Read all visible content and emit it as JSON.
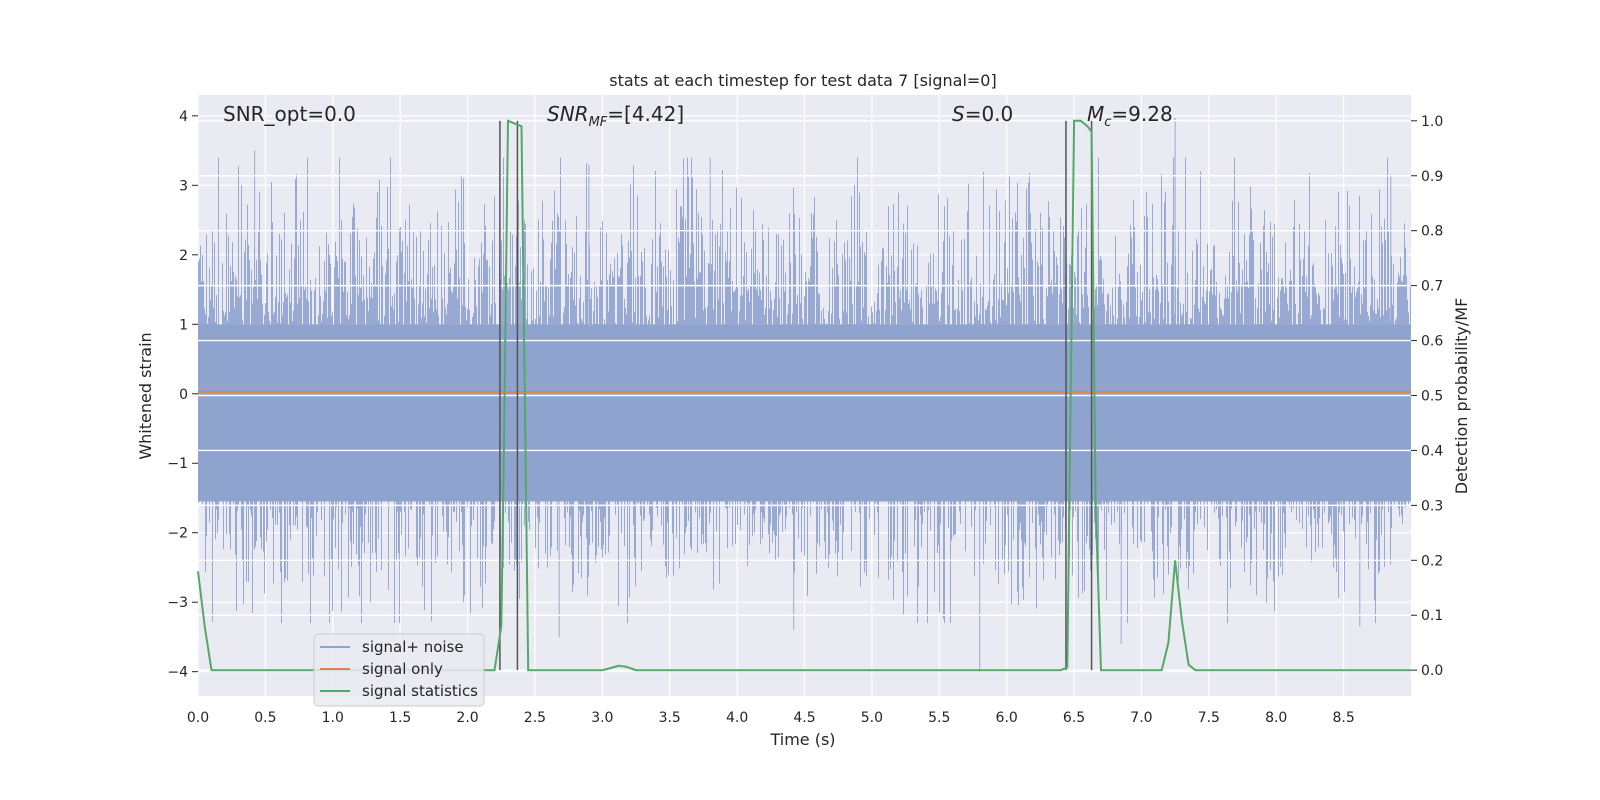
{
  "chart_data": {
    "type": "line",
    "title": "stats at each timestep for test data 7 [signal=0]",
    "xlabel": "Time (s)",
    "ylabel": "Whitened strain",
    "ylabel_right": "Detection probability/MF",
    "xlim": [
      0,
      9.0
    ],
    "ylim": [
      -4.35,
      4.3
    ],
    "ylim_right": [
      -0.047,
      1.047
    ],
    "xticks": [
      "0.0",
      "0.5",
      "1.0",
      "1.5",
      "2.0",
      "2.5",
      "3.0",
      "3.5",
      "4.0",
      "4.5",
      "5.0",
      "5.5",
      "6.0",
      "6.5",
      "7.0",
      "7.5",
      "8.0",
      "8.5"
    ],
    "yticks": [
      "4",
      "3",
      "2",
      "1",
      "0",
      "−1",
      "−2",
      "−3",
      "−4"
    ],
    "yticks_right": [
      "1.0",
      "0.9",
      "0.8",
      "0.7",
      "0.6",
      "0.5",
      "0.4",
      "0.3",
      "0.2",
      "0.1",
      "0.0"
    ],
    "annotations": {
      "snr_opt": "SNR_opt=0.0",
      "snr_mf_prefix": "SNR",
      "snr_mf_sub": "MF",
      "snr_mf_value": "=[4.42]",
      "s_italic": "S",
      "s_value": "=0.0",
      "mc_italic": "M",
      "mc_sub": "c",
      "mc_value": "=9.28"
    },
    "legend": {
      "placement": "lower-left",
      "entries": [
        "signal+ noise",
        "signal only",
        "signal statistics"
      ]
    },
    "colors": {
      "noise": "#8fa3cf",
      "signal_only": "#dd8452",
      "statistics": "#55a868",
      "markers": "#555555",
      "plot_bg": "#eaeaf2",
      "grid": "#ffffff"
    },
    "series": [
      {
        "name": "signal+ noise",
        "style": "noise band, approx. range -3.5 to 3.5",
        "t_range": [
          0,
          9.0
        ],
        "peak_points": [
          [
            0.42,
            3.5
          ],
          [
            1.05,
            3.4
          ],
          [
            2.9,
            3.3
          ],
          [
            3.8,
            3.4
          ],
          [
            7.25,
            3.97
          ],
          [
            8.85,
            3.15
          ],
          [
            2.68,
            -3.5
          ],
          [
            4.42,
            -3.4
          ],
          [
            5.8,
            -4.0
          ],
          [
            6.85,
            -3.6
          ],
          [
            8.62,
            -3.35
          ]
        ]
      },
      {
        "name": "signal only",
        "values_const": 0.0
      },
      {
        "name": "signal statistics",
        "axis": "right",
        "x": [
          0.0,
          0.05,
          0.1,
          0.2,
          0.5,
          1.0,
          1.5,
          2.0,
          2.1,
          2.17,
          2.2,
          2.25,
          2.27,
          2.3,
          2.35,
          2.4,
          2.45,
          2.5,
          3.0,
          3.05,
          3.12,
          3.18,
          3.25,
          3.3,
          4.0,
          5.0,
          6.0,
          6.4,
          6.45,
          6.5,
          6.55,
          6.6,
          6.63,
          6.66,
          6.7,
          6.74,
          6.8,
          6.9,
          7.0,
          7.1,
          7.15,
          7.2,
          7.25,
          7.3,
          7.35,
          7.4,
          8.0,
          9.0
        ],
        "y": [
          0.18,
          0.08,
          0.0,
          0.0,
          0.0,
          0.0,
          0.0,
          0.0,
          0.0,
          0.0,
          0.0,
          0.08,
          0.4,
          1.0,
          0.995,
          0.99,
          0.0,
          0.0,
          0.0,
          0.003,
          0.008,
          0.006,
          0.0,
          0.0,
          0.0,
          0.0,
          0.0,
          0.0,
          0.005,
          1.0,
          1.0,
          0.99,
          0.98,
          0.3,
          0.0,
          0.0,
          0.0,
          0.0,
          0.0,
          0.0,
          0.0,
          0.05,
          0.2,
          0.09,
          0.01,
          0.0,
          0.0,
          0.0
        ]
      }
    ],
    "vertical_markers": [
      2.24,
      2.37,
      6.44,
      6.63
    ]
  }
}
